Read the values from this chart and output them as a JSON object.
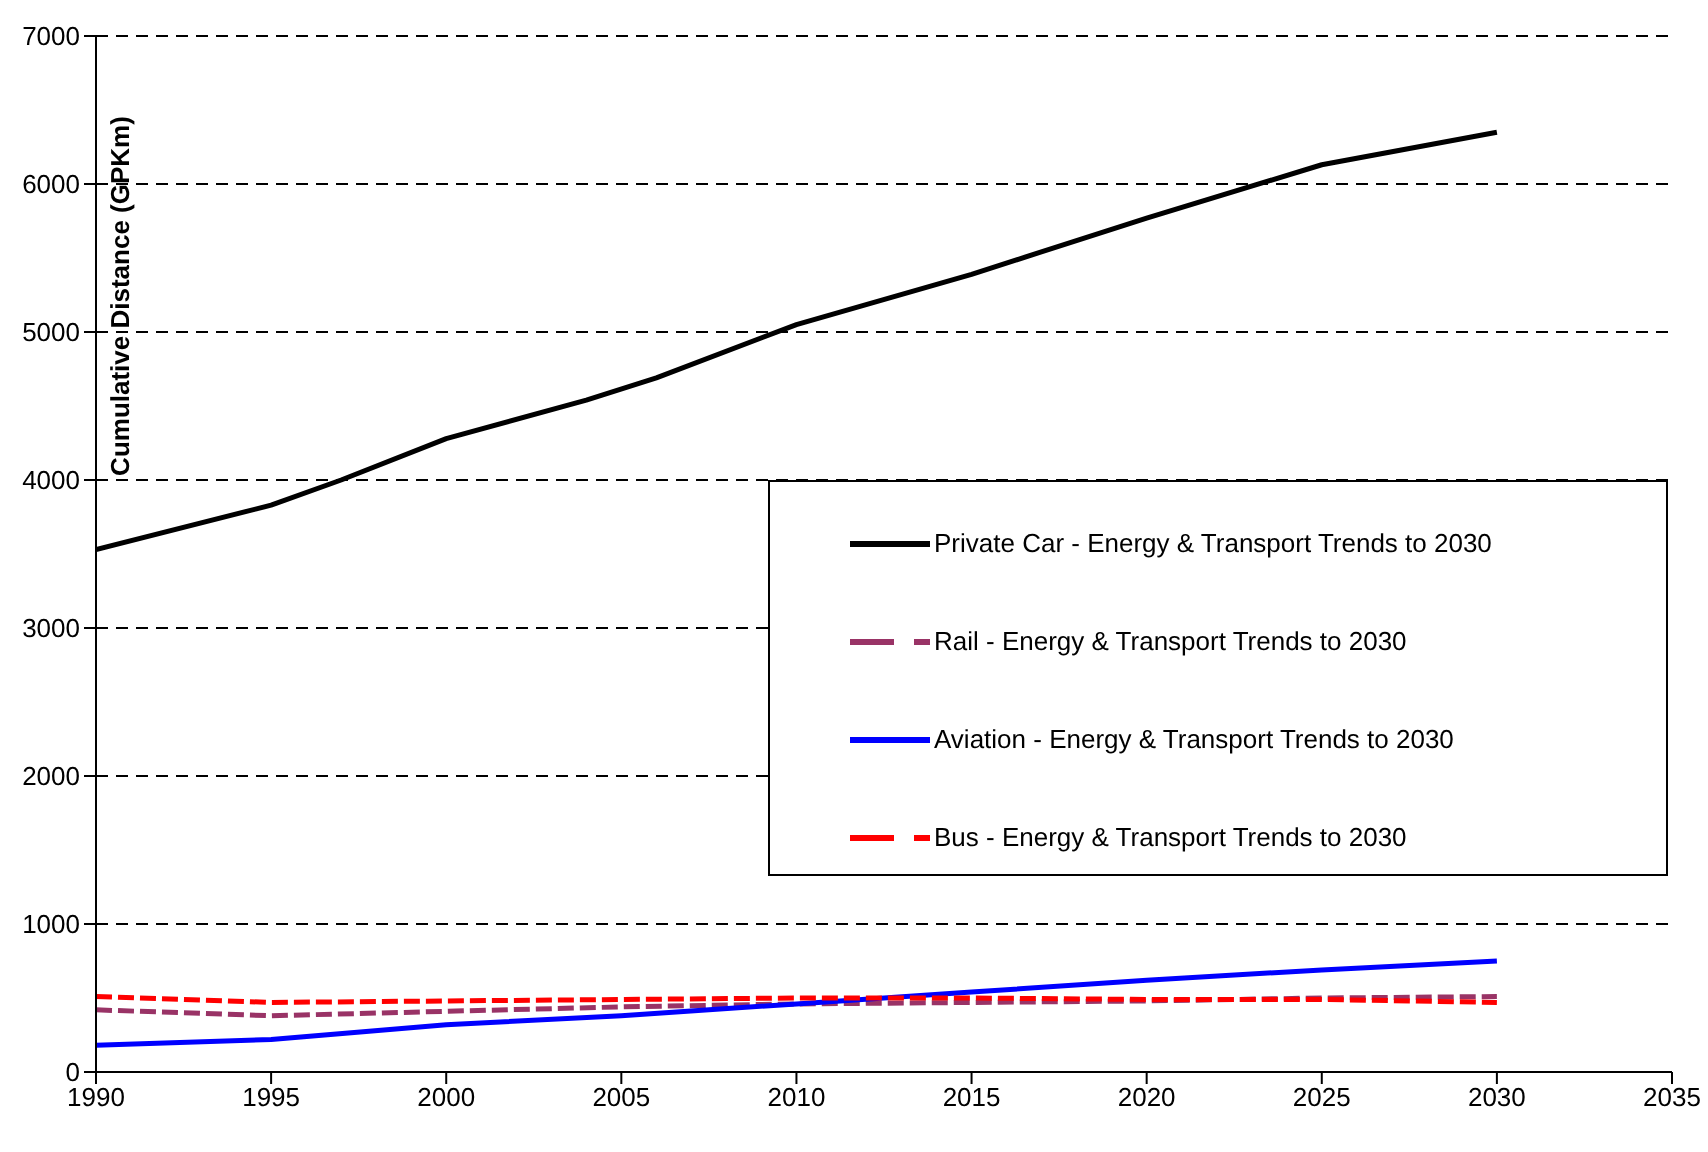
{
  "chart_data": {
    "type": "line",
    "ylabel": "Cumulative Distance (GPKm)",
    "xlim": [
      1990,
      2035
    ],
    "xticks": [
      1990,
      1995,
      2000,
      2005,
      2010,
      2015,
      2020,
      2025,
      2030,
      2035
    ],
    "ylim": [
      0,
      7000
    ],
    "yticks": [
      0,
      1000,
      2000,
      3000,
      4000,
      5000,
      6000,
      7000
    ],
    "grid": "y",
    "legend": "right",
    "marker": "none",
    "series": [
      {
        "name": "Private Car - Energy & Transport Trends to 2030",
        "color": "#000000",
        "line_style": "solid",
        "x": [
          1990,
          1995,
          1997,
          2000,
          2004,
          2006,
          2010,
          2015,
          2020,
          2025,
          2030
        ],
        "values": [
          3530,
          3830,
          4000,
          4280,
          4540,
          4690,
          5050,
          5390,
          5770,
          6130,
          6350
        ]
      },
      {
        "name": "Rail - Energy & Transport Trends to 2030",
        "color": "#993366",
        "line_style": "dashed",
        "x": [
          1990,
          1995,
          2000,
          2005,
          2010,
          2015,
          2020,
          2025,
          2030
        ],
        "values": [
          420,
          380,
          410,
          440,
          460,
          470,
          480,
          500,
          510
        ]
      },
      {
        "name": "Aviation - Energy & Transport Trends to 2030",
        "color": "#0000ff",
        "line_style": "solid",
        "x": [
          1990,
          1995,
          2000,
          2005,
          2010,
          2015,
          2020,
          2025,
          2030
        ],
        "values": [
          180,
          220,
          320,
          380,
          460,
          540,
          620,
          690,
          750
        ]
      },
      {
        "name": "Bus - Energy & Transport Trends to 2030",
        "color": "#ff0000",
        "line_style": "dashed",
        "x": [
          1990,
          1995,
          2000,
          2005,
          2010,
          2015,
          2020,
          2025,
          2030
        ],
        "values": [
          510,
          470,
          480,
          490,
          500,
          500,
          490,
          490,
          470
        ]
      }
    ]
  }
}
